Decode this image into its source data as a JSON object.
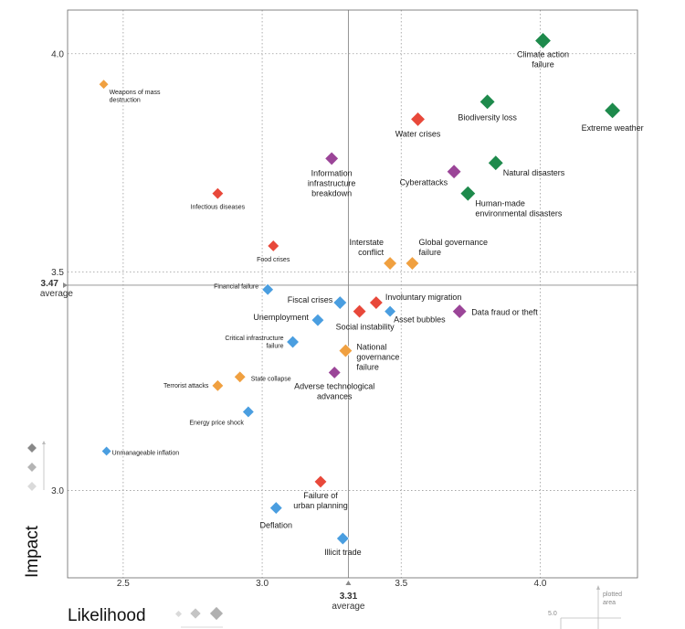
{
  "chart_data": {
    "type": "scatter",
    "xlabel": "Likelihood",
    "ylabel": "Impact",
    "xlim": [
      2.3,
      4.35
    ],
    "ylim": [
      2.8,
      4.1
    ],
    "x_ticks": [
      "2.5",
      "3.0",
      "3.5",
      "4.0"
    ],
    "y_ticks": [
      "3.0",
      "3.5",
      "4.0"
    ],
    "average": {
      "x": 3.31,
      "x_value_label": "3.31",
      "x_caption": "average",
      "y": 3.47,
      "y_value_label": "3.47",
      "y_caption": "average"
    },
    "grid": "dotted",
    "category_colors": {
      "economic": "#4a9ee0",
      "environmental": "#1e8a4c",
      "geopolitical": "#f0a040",
      "societal": "#e8483a",
      "technological": "#9b4598"
    },
    "points": [
      {
        "label": "Climate action failure",
        "x": 4.01,
        "y": 4.03,
        "category": "environmental",
        "size": 18
      },
      {
        "label": "Extreme weather",
        "x": 4.26,
        "y": 3.87,
        "category": "environmental",
        "size": 18
      },
      {
        "label": "Biodiversity loss",
        "x": 3.81,
        "y": 3.89,
        "category": "environmental",
        "size": 17
      },
      {
        "label": "Natural disasters",
        "x": 3.84,
        "y": 3.75,
        "category": "environmental",
        "size": 17
      },
      {
        "label": "Human-made environmental disasters",
        "x": 3.74,
        "y": 3.68,
        "category": "environmental",
        "size": 17
      },
      {
        "label": "Water crises",
        "x": 3.56,
        "y": 3.85,
        "category": "societal",
        "size": 16
      },
      {
        "label": "Cyberattacks",
        "x": 3.69,
        "y": 3.73,
        "category": "technological",
        "size": 16
      },
      {
        "label": "Information infrastructure breakdown",
        "x": 3.25,
        "y": 3.76,
        "category": "technological",
        "size": 15
      },
      {
        "label": "Weapons of mass destruction",
        "x": 2.43,
        "y": 3.93,
        "category": "geopolitical",
        "size": 11
      },
      {
        "label": "Infectious diseases",
        "x": 2.84,
        "y": 3.68,
        "category": "societal",
        "size": 13
      },
      {
        "label": "Food crises",
        "x": 3.04,
        "y": 3.56,
        "category": "societal",
        "size": 13
      },
      {
        "label": "Interstate conflict",
        "x": 3.46,
        "y": 3.52,
        "category": "geopolitical",
        "size": 15
      },
      {
        "label": "Global governance failure",
        "x": 3.54,
        "y": 3.52,
        "category": "geopolitical",
        "size": 15
      },
      {
        "label": "Financial failure",
        "x": 3.02,
        "y": 3.46,
        "category": "economic",
        "size": 13
      },
      {
        "label": "Fiscal crises",
        "x": 3.28,
        "y": 3.43,
        "category": "economic",
        "size": 15
      },
      {
        "label": "Involuntary migration",
        "x": 3.41,
        "y": 3.43,
        "category": "societal",
        "size": 15
      },
      {
        "label": "Social instability",
        "x": 3.35,
        "y": 3.41,
        "category": "societal",
        "size": 15
      },
      {
        "label": "Asset bubbles",
        "x": 3.46,
        "y": 3.41,
        "category": "economic",
        "size": 13
      },
      {
        "label": "Data fraud or theft",
        "x": 3.71,
        "y": 3.41,
        "category": "technological",
        "size": 16
      },
      {
        "label": "Unemployment",
        "x": 3.2,
        "y": 3.39,
        "category": "economic",
        "size": 14
      },
      {
        "label": "Critical infrastructure failure",
        "x": 3.11,
        "y": 3.34,
        "category": "economic",
        "size": 14
      },
      {
        "label": "National governance failure",
        "x": 3.3,
        "y": 3.32,
        "category": "geopolitical",
        "size": 15
      },
      {
        "label": "Adverse technological advances",
        "x": 3.26,
        "y": 3.27,
        "category": "technological",
        "size": 14
      },
      {
        "label": "State collapse",
        "x": 2.92,
        "y": 3.26,
        "category": "geopolitical",
        "size": 13
      },
      {
        "label": "Terrorist attacks",
        "x": 2.84,
        "y": 3.24,
        "category": "geopolitical",
        "size": 13
      },
      {
        "label": "Energy price shock",
        "x": 2.95,
        "y": 3.18,
        "category": "economic",
        "size": 13
      },
      {
        "label": "Unmanageable inflation",
        "x": 2.44,
        "y": 3.09,
        "category": "economic",
        "size": 11
      },
      {
        "label": "Failure of urban planning",
        "x": 3.21,
        "y": 3.02,
        "category": "societal",
        "size": 14
      },
      {
        "label": "Deflation",
        "x": 3.05,
        "y": 2.96,
        "category": "economic",
        "size": 14
      },
      {
        "label": "Illicit trade",
        "x": 3.29,
        "y": 2.89,
        "category": "economic",
        "size": 14
      }
    ],
    "legend_plotted_area": {
      "caption_lines": [
        "plotted",
        "area"
      ],
      "value": "5.0"
    }
  }
}
